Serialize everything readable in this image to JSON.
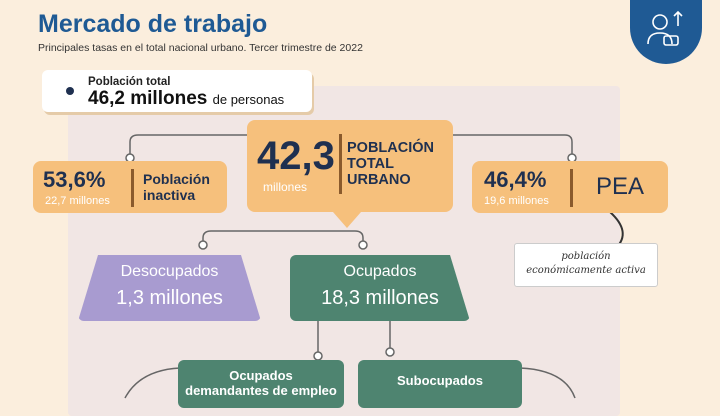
{
  "header": {
    "title": "Mercado de trabajo",
    "subtitle": "Principales tasas en el total nacional urbano. Tercer trimestre de 2022"
  },
  "population_total": {
    "label": "Población total",
    "value": "46,2 millones",
    "unit": "de personas"
  },
  "urban_population": {
    "value": "42,3",
    "unit": "millones",
    "label_line1": "POBLACIÓN",
    "label_line2": "TOTAL",
    "label_line3": "URBANO"
  },
  "inactive": {
    "percent": "53,6%",
    "amount": "22,7 millones",
    "label_line1": "Población",
    "label_line2": "inactiva"
  },
  "pea": {
    "percent": "46,4%",
    "amount": "19,6 millones",
    "label": "PEA",
    "note_line1": "población",
    "note_line2": "económicamente activa"
  },
  "unemployed": {
    "label": "Desocupados",
    "value": "1,3 millones"
  },
  "employed": {
    "label": "Ocupados",
    "value": "18,3 millones"
  },
  "employed_seeking": {
    "line1": "Ocupados",
    "line2": "demandantes de empleo"
  },
  "underemployed": {
    "label": "Subocupados"
  },
  "colors": {
    "brand_blue": "#1f5a94",
    "orange_card": "#f6c07c",
    "green_box": "#4e8470",
    "purple_box": "#a89bd0"
  }
}
